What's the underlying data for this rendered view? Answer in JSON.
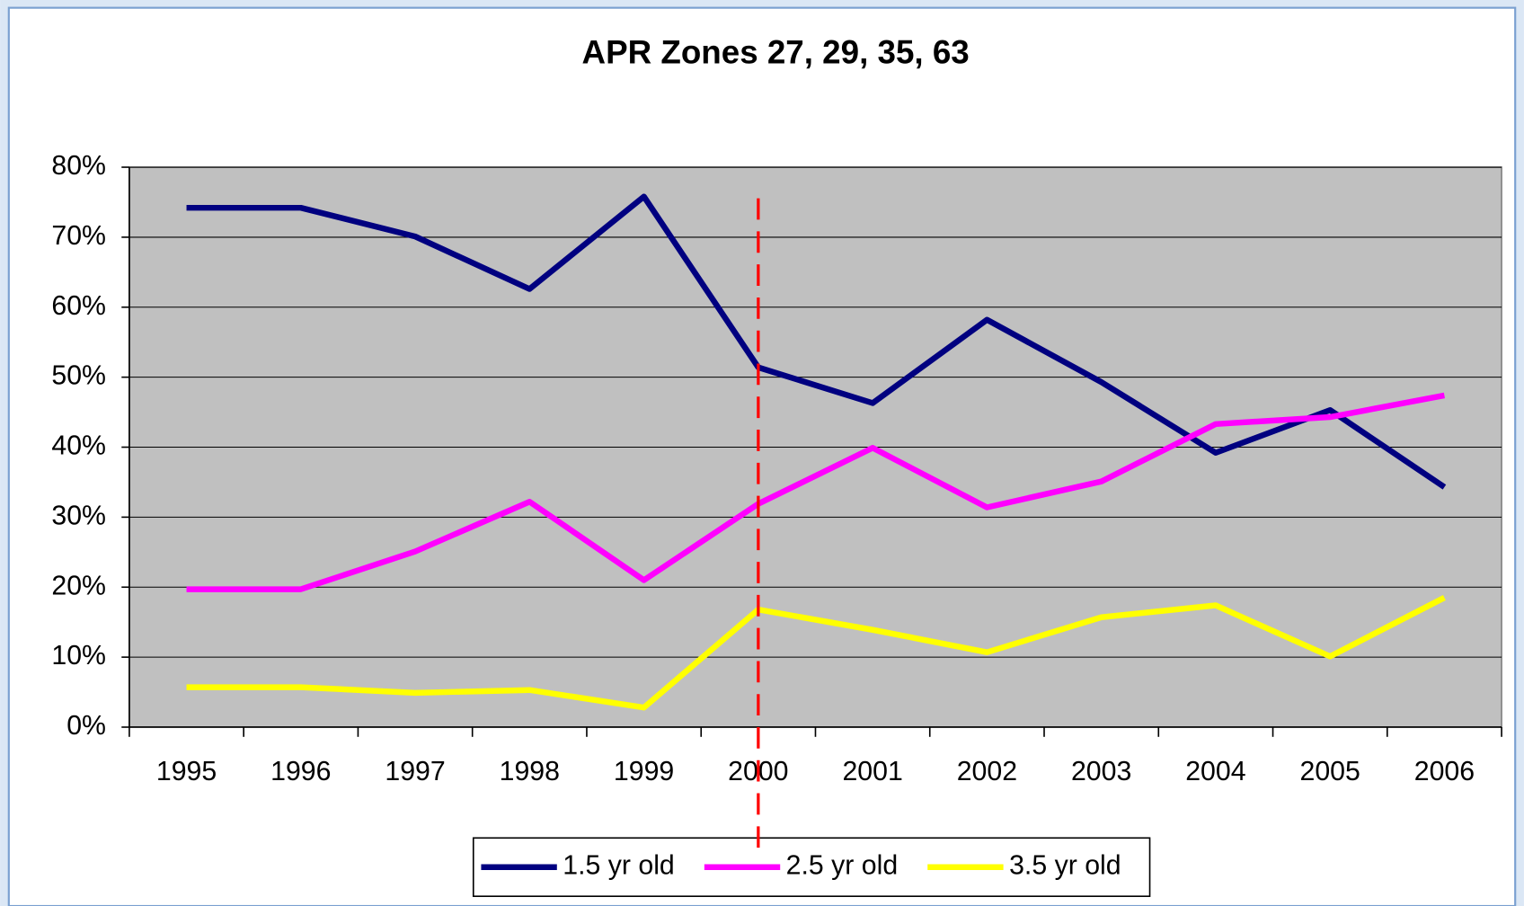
{
  "chart_data": {
    "type": "line",
    "title": "APR Zones 27, 29, 35, 63",
    "categories": [
      "1995",
      "1996",
      "1997",
      "1998",
      "1999",
      "2000",
      "2001",
      "2002",
      "2003",
      "2004",
      "2005",
      "2006"
    ],
    "series": [
      {
        "name": "1.5 yr old",
        "color": "#000080",
        "values": [
          74.2,
          74.2,
          70.1,
          62.6,
          75.8,
          51.4,
          46.3,
          58.2,
          49.3,
          39.2,
          45.3,
          34.3
        ]
      },
      {
        "name": "2.5 yr old",
        "color": "#ff00ff",
        "values": [
          19.7,
          19.7,
          25.1,
          32.2,
          21.0,
          31.9,
          39.9,
          31.4,
          35.1,
          43.3,
          44.3,
          47.4
        ]
      },
      {
        "name": "3.5 yr old",
        "color": "#ffff00",
        "values": [
          5.7,
          5.7,
          4.9,
          5.3,
          2.8,
          16.8,
          13.9,
          10.7,
          15.7,
          17.4,
          10.1,
          18.5
        ]
      }
    ],
    "ylim": [
      0,
      80
    ],
    "yticks": [
      {
        "value": 0,
        "label": "0%"
      },
      {
        "value": 10,
        "label": "10%"
      },
      {
        "value": 20,
        "label": "20%"
      },
      {
        "value": 30,
        "label": "30%"
      },
      {
        "value": 40,
        "label": "40%"
      },
      {
        "value": 50,
        "label": "50%"
      },
      {
        "value": 60,
        "label": "60%"
      },
      {
        "value": 70,
        "label": "70%"
      },
      {
        "value": 80,
        "label": "80%"
      }
    ],
    "grid": true,
    "plot_background": "#c0c0c0",
    "legend": "bottom",
    "reference_line": {
      "category": "2000",
      "color": "#ff0000"
    }
  }
}
